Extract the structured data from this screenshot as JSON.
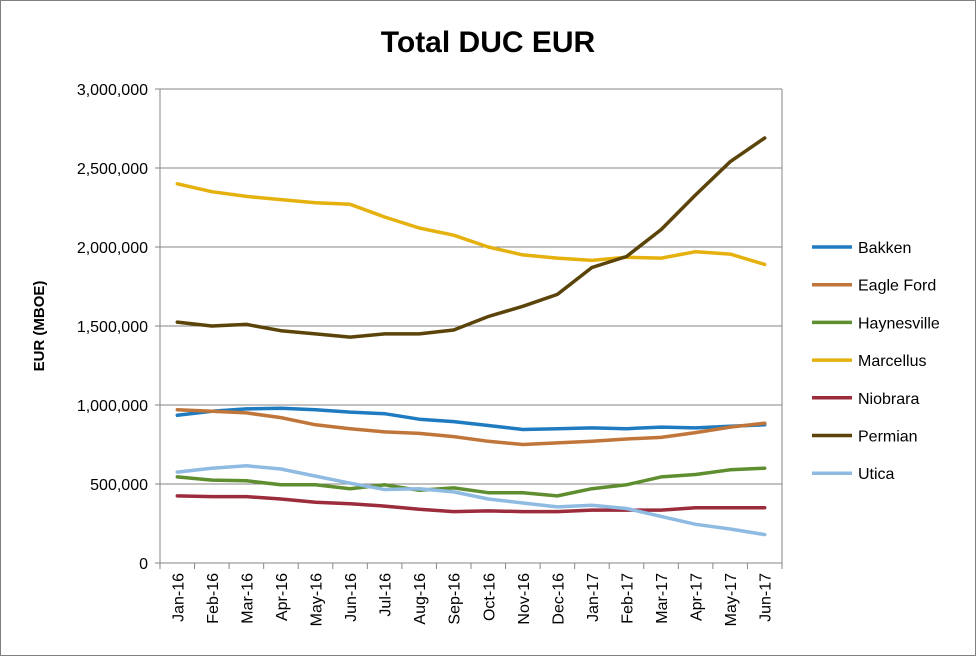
{
  "chart_data": {
    "type": "line",
    "title": "Total DUC EUR",
    "xlabel": "",
    "ylabel": "EUR (MBOE)",
    "ylim": [
      0,
      3000000
    ],
    "yticks": [
      0,
      500000,
      1000000,
      1500000,
      2000000,
      2500000,
      3000000
    ],
    "ytick_labels": [
      "0",
      "500,000",
      "1,000,000",
      "1,500,000",
      "2,000,000",
      "2,500,000",
      "3,000,000"
    ],
    "grid": "horizontal",
    "legend_position": "right",
    "categories": [
      "Jan-16",
      "Feb-16",
      "Mar-16",
      "Apr-16",
      "May-16",
      "Jun-16",
      "Jul-16",
      "Aug-16",
      "Sep-16",
      "Oct-16",
      "Nov-16",
      "Dec-16",
      "Jan-17",
      "Feb-17",
      "Mar-17",
      "Apr-17",
      "May-17",
      "Jun-17"
    ],
    "series": [
      {
        "name": "Bakken",
        "color": "#1f7bbf",
        "values": [
          935000,
          960000,
          975000,
          980000,
          970000,
          955000,
          945000,
          910000,
          895000,
          870000,
          845000,
          850000,
          855000,
          850000,
          860000,
          855000,
          865000,
          875000
        ]
      },
      {
        "name": "Eagle Ford",
        "color": "#c0763a",
        "values": [
          970000,
          960000,
          950000,
          920000,
          875000,
          850000,
          830000,
          820000,
          800000,
          770000,
          750000,
          760000,
          770000,
          785000,
          795000,
          825000,
          860000,
          885000
        ]
      },
      {
        "name": "Haynesville",
        "color": "#5f8e30",
        "values": [
          545000,
          525000,
          520000,
          495000,
          495000,
          470000,
          495000,
          460000,
          475000,
          445000,
          445000,
          425000,
          470000,
          495000,
          545000,
          560000,
          590000,
          600000
        ]
      },
      {
        "name": "Marcellus",
        "color": "#e5b10e",
        "values": [
          2400000,
          2350000,
          2320000,
          2300000,
          2280000,
          2270000,
          2190000,
          2120000,
          2075000,
          2000000,
          1950000,
          1930000,
          1915000,
          1935000,
          1930000,
          1970000,
          1955000,
          1890000
        ]
      },
      {
        "name": "Niobrara",
        "color": "#9c2b3c",
        "values": [
          425000,
          420000,
          420000,
          405000,
          385000,
          375000,
          360000,
          340000,
          325000,
          330000,
          325000,
          325000,
          335000,
          335000,
          335000,
          350000,
          350000,
          350000
        ]
      },
      {
        "name": "Permian",
        "color": "#5b4409",
        "values": [
          1525000,
          1500000,
          1510000,
          1470000,
          1450000,
          1430000,
          1450000,
          1450000,
          1475000,
          1560000,
          1625000,
          1700000,
          1870000,
          1940000,
          2110000,
          2330000,
          2540000,
          2690000
        ]
      },
      {
        "name": "Utica",
        "color": "#8fbbe2",
        "values": [
          575000,
          600000,
          615000,
          595000,
          550000,
          505000,
          465000,
          470000,
          450000,
          405000,
          380000,
          355000,
          365000,
          345000,
          295000,
          245000,
          215000,
          180000
        ]
      }
    ]
  }
}
